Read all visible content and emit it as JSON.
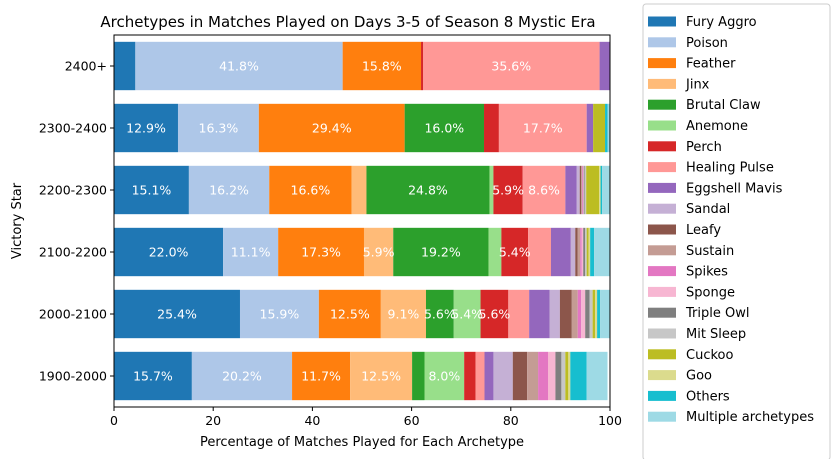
{
  "chart_data": {
    "type": "bar",
    "orientation": "horizontal",
    "stacked": true,
    "title": "Archetypes in Matches Played on Days 3-5 of Season 8 Mystic Era",
    "xlabel": "Percentage of Matches Played for Each Archetype",
    "ylabel": "Victory Star",
    "xlim": [
      0,
      100
    ],
    "xticks": [
      "0",
      "20",
      "40",
      "60",
      "80",
      "100"
    ],
    "legend_position": "outside-right",
    "grid": false,
    "categories": [
      "1900-2000",
      "2000-2100",
      "2100-2200",
      "2200-2300",
      "2300-2400",
      "2400+"
    ],
    "series": [
      {
        "name": "Fury Aggro",
        "color": "#1f77b4",
        "values": [
          15.7,
          25.4,
          22.0,
          15.1,
          12.9,
          4.3
        ]
      },
      {
        "name": "Poison",
        "color": "#aec7e8",
        "values": [
          20.2,
          15.9,
          11.1,
          16.2,
          16.3,
          41.8
        ]
      },
      {
        "name": "Feather",
        "color": "#ff7f0e",
        "values": [
          11.7,
          12.5,
          17.3,
          16.6,
          29.4,
          15.8
        ]
      },
      {
        "name": "Jinx",
        "color": "#ffbb78",
        "values": [
          12.5,
          9.1,
          5.9,
          3.0,
          0.0,
          0.0
        ]
      },
      {
        "name": "Brutal Claw",
        "color": "#2ca02c",
        "values": [
          2.5,
          5.6,
          19.2,
          24.8,
          16.0,
          0.0
        ]
      },
      {
        "name": "Anemone",
        "color": "#98df8a",
        "values": [
          8.0,
          5.4,
          2.6,
          0.8,
          0.0,
          0.0
        ]
      },
      {
        "name": "Perch",
        "color": "#d62728",
        "values": [
          2.3,
          5.6,
          5.4,
          5.9,
          3.0,
          0.4
        ]
      },
      {
        "name": "Healing Pulse",
        "color": "#ff9896",
        "values": [
          1.8,
          4.2,
          4.6,
          8.6,
          17.7,
          35.6
        ]
      },
      {
        "name": "Eggshell Mavis",
        "color": "#9467bd",
        "values": [
          1.8,
          4.1,
          4.0,
          2.3,
          1.3,
          2.5
        ]
      },
      {
        "name": "Sandal",
        "color": "#c5b0d5",
        "values": [
          3.9,
          2.1,
          0.9,
          0.6,
          0.0,
          0.0
        ]
      },
      {
        "name": "Leafy",
        "color": "#8c564b",
        "values": [
          2.9,
          2.4,
          0.5,
          0.3,
          0.0,
          0.0
        ]
      },
      {
        "name": "Sustain",
        "color": "#c49c94",
        "values": [
          2.2,
          1.2,
          0.5,
          0.2,
          0.0,
          0.0
        ]
      },
      {
        "name": "Spikes",
        "color": "#e377c2",
        "values": [
          2.0,
          0.7,
          0.3,
          0.2,
          0.0,
          0.0
        ]
      },
      {
        "name": "Sponge",
        "color": "#f7b6d2",
        "values": [
          1.5,
          0.8,
          0.3,
          0.1,
          0.0,
          0.0
        ]
      },
      {
        "name": "Triple Owl",
        "color": "#7f7f7f",
        "values": [
          1.2,
          0.9,
          0.4,
          0.2,
          0.0,
          0.0
        ]
      },
      {
        "name": "Mit Sleep",
        "color": "#c7c7c7",
        "values": [
          0.8,
          0.6,
          0.3,
          0.3,
          0.0,
          0.0
        ]
      },
      {
        "name": "Cuckoo",
        "color": "#bcbd22",
        "values": [
          0.6,
          0.5,
          0.4,
          2.6,
          2.4,
          0.0
        ]
      },
      {
        "name": "Goo",
        "color": "#dbdb8d",
        "values": [
          0.4,
          0.4,
          0.3,
          0.3,
          0.0,
          0.0
        ]
      },
      {
        "name": "Others",
        "color": "#17becf",
        "values": [
          3.3,
          0.6,
          0.8,
          0.3,
          0.5,
          0.0
        ]
      },
      {
        "name": "Multiple archetypes",
        "color": "#9edae5",
        "values": [
          4.2,
          3.3,
          3.6,
          3.3,
          0.5,
          0.0
        ]
      }
    ],
    "label_threshold": 5
  }
}
